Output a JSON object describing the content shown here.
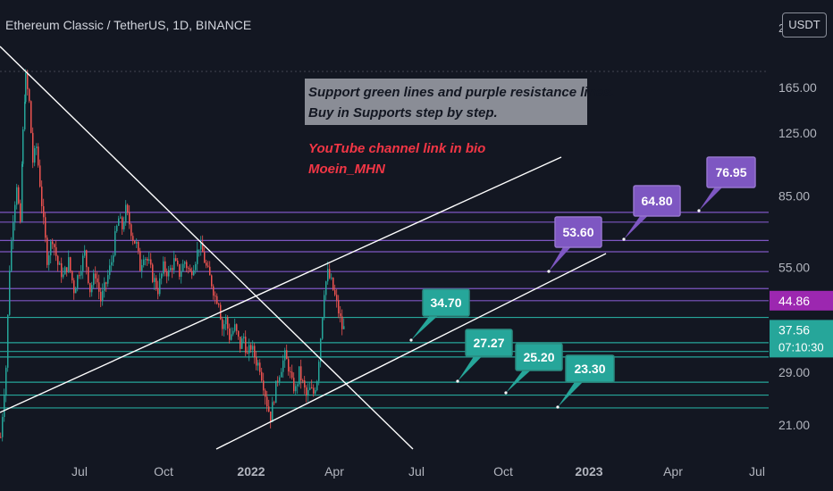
{
  "header": {
    "title": "Ethereum Classic / TetherUS, 1D, BINANCE",
    "currency": "USDT",
    "axis_top": "2"
  },
  "chart_data": {
    "type": "candlestick",
    "title": "Ethereum Classic / TetherUS, 1D, BINANCE",
    "y_scale": "log",
    "ylim": [
      18.5,
      230
    ],
    "y_ticks": [
      {
        "value": 165,
        "label": "165.00"
      },
      {
        "value": 125,
        "label": "125.00"
      },
      {
        "value": 85,
        "label": "85.00"
      },
      {
        "value": 55,
        "label": "55.00"
      },
      {
        "value": 29,
        "label": "29.00"
      },
      {
        "value": 21,
        "label": "21.00"
      }
    ],
    "x_ticks": [
      "Jul",
      "Oct",
      "2022",
      "Apr",
      "Jul",
      "Oct",
      "2023",
      "Apr",
      "Jul"
    ],
    "x_ticks_bold": [
      "2022",
      "2023"
    ],
    "price_path": [
      [
        0,
        19.5
      ],
      [
        6,
        30
      ],
      [
        10,
        55
      ],
      [
        14,
        75
      ],
      [
        18,
        92
      ],
      [
        22,
        70
      ],
      [
        25,
        125
      ],
      [
        28,
        175
      ],
      [
        32,
        150
      ],
      [
        36,
        105
      ],
      [
        40,
        115
      ],
      [
        44,
        92
      ],
      [
        48,
        72
      ],
      [
        52,
        58
      ],
      [
        58,
        66
      ],
      [
        64,
        56
      ],
      [
        70,
        52
      ],
      [
        76,
        57
      ],
      [
        82,
        48
      ],
      [
        88,
        54
      ],
      [
        94,
        60
      ],
      [
        100,
        48
      ],
      [
        106,
        53
      ],
      [
        112,
        45
      ],
      [
        118,
        50
      ],
      [
        124,
        57
      ],
      [
        128,
        66
      ],
      [
        132,
        74
      ],
      [
        136,
        70
      ],
      [
        140,
        78
      ],
      [
        144,
        72
      ],
      [
        148,
        66
      ],
      [
        152,
        63
      ],
      [
        156,
        55
      ],
      [
        160,
        60
      ],
      [
        166,
        56
      ],
      [
        170,
        52
      ],
      [
        176,
        48
      ],
      [
        182,
        55
      ],
      [
        188,
        53
      ],
      [
        194,
        57
      ],
      [
        200,
        53
      ],
      [
        206,
        57
      ],
      [
        212,
        53
      ],
      [
        218,
        58
      ],
      [
        222,
        63
      ],
      [
        226,
        60
      ],
      [
        230,
        55
      ],
      [
        236,
        50
      ],
      [
        240,
        46
      ],
      [
        244,
        45
      ],
      [
        248,
        38
      ],
      [
        252,
        40
      ],
      [
        256,
        36
      ],
      [
        262,
        38
      ],
      [
        268,
        34
      ],
      [
        272,
        36
      ],
      [
        276,
        32
      ],
      [
        280,
        34
      ],
      [
        286,
        31
      ],
      [
        290,
        30
      ],
      [
        294,
        27
      ],
      [
        298,
        24
      ],
      [
        302,
        22
      ],
      [
        306,
        25
      ],
      [
        310,
        28
      ],
      [
        314,
        30
      ],
      [
        318,
        32
      ],
      [
        322,
        30
      ],
      [
        326,
        27
      ],
      [
        330,
        26
      ],
      [
        334,
        29
      ],
      [
        338,
        27
      ],
      [
        342,
        25
      ],
      [
        346,
        26
      ],
      [
        350,
        25.5
      ],
      [
        354,
        28
      ],
      [
        358,
        36
      ],
      [
        362,
        48
      ],
      [
        366,
        53
      ],
      [
        370,
        50
      ],
      [
        374,
        46
      ],
      [
        378,
        42
      ],
      [
        382,
        38
      ],
      [
        386,
        37.56
      ]
    ],
    "series": [
      {
        "name": "Support green lines",
        "values": [
          34.7,
          27.27,
          25.2,
          23.3
        ]
      },
      {
        "name": "purple resistance lines",
        "values": [
          44.86,
          53.6,
          64.8,
          76.95
        ]
      }
    ],
    "extra_support_lines": [
      40.5,
      32.9,
      31.8
    ],
    "extra_resistance_lines": [
      72.5,
      60.5,
      48.3
    ],
    "price_callouts": {
      "support": [
        {
          "label": "34.70",
          "value": 34.7
        },
        {
          "label": "27.27",
          "value": 27.27
        },
        {
          "label": "25.20",
          "value": 25.2
        },
        {
          "label": "23.30",
          "value": 23.3
        }
      ],
      "resistance": [
        {
          "label": "53.60",
          "value": 53.6
        },
        {
          "label": "64.80",
          "value": 64.8
        },
        {
          "label": "76.95",
          "value": 76.95
        }
      ]
    },
    "price_badges": [
      {
        "label": "44.86",
        "value": 44.86,
        "color": "#9c27b0"
      },
      {
        "label": "37.56",
        "value": 37.56,
        "color": "#26a69a",
        "sub": "07:10:30"
      }
    ],
    "annotations": {
      "note_line1": "Support green lines and purple resistance lines.",
      "note_line2": " Buy in Supports step by step.",
      "red_line1": "YouTube channel link in bio",
      "red_line2": "Moein_MHN"
    },
    "colors": {
      "background": "#131722",
      "support": "#26a69a",
      "resistance": "#7e57c2",
      "candle_up": "#26a69a",
      "candle_down": "#ef5350",
      "trendline": "#ffffff",
      "red_text": "#f23645"
    },
    "grid": false
  }
}
